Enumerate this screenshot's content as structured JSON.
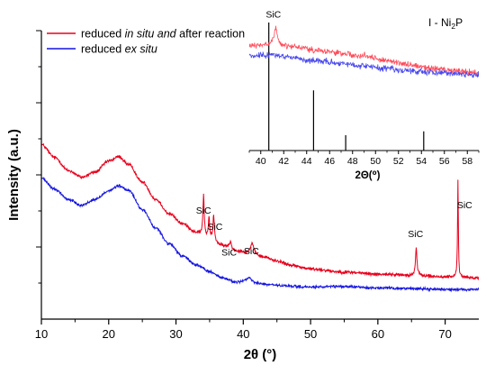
{
  "chart_data": {
    "type": "line",
    "xlabel": "2θ (°)",
    "ylabel": "Intensity (a.u.)",
    "xlim": [
      10,
      75
    ],
    "xticks": [
      10,
      20,
      30,
      40,
      50,
      60,
      70
    ],
    "ylim": [
      0,
      100
    ],
    "y_tick_labels_shown": false,
    "grid": false,
    "legend": {
      "placement": "top-left",
      "entries": [
        {
          "series": "red",
          "parts": [
            {
              "text": "reduced ",
              "italic": false
            },
            {
              "text": "in situ and",
              "italic": true
            },
            {
              "text": " after reaction",
              "italic": false
            }
          ],
          "color": "#e8001c"
        },
        {
          "series": "blue",
          "parts": [
            {
              "text": "reduced ",
              "italic": false
            },
            {
              "text": "ex situ",
              "italic": true
            }
          ],
          "color": "#1515e0"
        }
      ]
    },
    "series": [
      {
        "id": "red",
        "color": "#e8001c",
        "noise": 0.55,
        "baseline_points": [
          [
            10,
            60.5
          ],
          [
            12,
            56
          ],
          [
            14,
            51.5
          ],
          [
            16,
            49.2
          ],
          [
            18,
            51
          ],
          [
            20,
            54.8
          ],
          [
            21.5,
            56.3
          ],
          [
            23,
            53.5
          ],
          [
            25,
            47.5
          ],
          [
            27,
            41.5
          ],
          [
            29,
            36.5
          ],
          [
            31,
            33
          ],
          [
            33,
            30
          ],
          [
            35,
            27.8
          ],
          [
            37,
            25.3
          ],
          [
            39,
            23.6
          ],
          [
            41,
            23
          ],
          [
            43,
            21.5
          ],
          [
            45,
            20.2
          ],
          [
            47,
            18.7
          ],
          [
            50,
            17.4
          ],
          [
            55,
            16.3
          ],
          [
            60,
            15.6
          ],
          [
            65,
            15.2
          ],
          [
            70,
            14.6
          ],
          [
            75,
            14.3
          ]
        ],
        "peaks": [
          [
            34.1,
            14,
            0.12
          ],
          [
            34.9,
            7,
            0.12
          ],
          [
            35.6,
            8.5,
            0.12
          ],
          [
            38.1,
            2.5,
            0.2
          ],
          [
            41.3,
            3.5,
            0.25
          ],
          [
            65.7,
            9.5,
            0.13
          ],
          [
            71.9,
            34,
            0.07
          ]
        ]
      },
      {
        "id": "blue",
        "color": "#1515e0",
        "noise": 0.45,
        "baseline_points": [
          [
            10,
            48.8
          ],
          [
            12,
            45
          ],
          [
            14,
            41.5
          ],
          [
            16,
            39.5
          ],
          [
            18,
            41.5
          ],
          [
            20,
            44.5
          ],
          [
            21.5,
            46.2
          ],
          [
            23,
            44.5
          ],
          [
            25,
            38
          ],
          [
            27,
            31.5
          ],
          [
            29,
            26
          ],
          [
            31,
            21.8
          ],
          [
            33,
            18.8
          ],
          [
            35,
            16.5
          ],
          [
            37,
            14.2
          ],
          [
            39,
            12.8
          ],
          [
            40.8,
            13.5
          ],
          [
            42,
            12.4
          ],
          [
            44,
            11.9
          ],
          [
            46,
            11.5
          ],
          [
            50,
            11.1
          ],
          [
            55,
            11.3
          ],
          [
            60,
            10.8
          ],
          [
            65,
            10.6
          ],
          [
            70,
            10.3
          ],
          [
            75,
            10.3
          ]
        ],
        "peaks": [
          [
            40.9,
            0.8,
            0.35
          ]
        ]
      }
    ],
    "peak_labels": [
      {
        "text": "SiC",
        "x": 34.1,
        "y": 36.5
      },
      {
        "text": "SiC",
        "x": 35.8,
        "y": 31
      },
      {
        "text": "SiC",
        "x": 37.9,
        "y": 22
      },
      {
        "text": "SiC",
        "x": 41.2,
        "y": 22.5
      },
      {
        "text": "SiC",
        "x": 65.6,
        "y": 28.5
      },
      {
        "text": "SiC",
        "x": 72.9,
        "y": 38.5
      }
    ],
    "inset": {
      "xlabel": "2Θ(⁰)",
      "xlim": [
        39,
        59
      ],
      "xticks": [
        40,
        42,
        44,
        46,
        48,
        50,
        52,
        54,
        56,
        58
      ],
      "ylim": [
        0,
        100
      ],
      "phase_label": {
        "prefix": "I - Ni",
        "sub1": "2",
        "suffix": "P"
      },
      "reference_sticks": [
        [
          40.7,
          100
        ],
        [
          44.6,
          47
        ],
        [
          47.4,
          12
        ],
        [
          54.2,
          15
        ]
      ],
      "series": [
        {
          "id": "inset-red",
          "color": "#ff4a58",
          "noise": 2.3,
          "baseline_points": [
            [
              39,
              81
            ],
            [
              41,
              83
            ],
            [
              43,
              81
            ],
            [
              45,
              78
            ],
            [
              47,
              76
            ],
            [
              49,
              74
            ],
            [
              51,
              70
            ],
            [
              53,
              67
            ],
            [
              55,
              64
            ],
            [
              57,
              62
            ],
            [
              59,
              61
            ]
          ],
          "peaks": [
            [
              41.3,
              13,
              0.15
            ]
          ]
        },
        {
          "id": "inset-blue",
          "color": "#4848ee",
          "noise": 2.3,
          "baseline_points": [
            [
              39,
              74
            ],
            [
              41,
              75
            ],
            [
              43,
              72
            ],
            [
              45,
              70
            ],
            [
              47,
              68
            ],
            [
              49,
              66
            ],
            [
              51,
              64
            ],
            [
              53,
              62
            ],
            [
              55,
              61
            ],
            [
              57,
              60
            ],
            [
              59,
              59
            ]
          ],
          "peaks": []
        }
      ],
      "peak_labels": [
        {
          "text": "SiC",
          "x": 41.1,
          "y": 104
        }
      ]
    }
  }
}
